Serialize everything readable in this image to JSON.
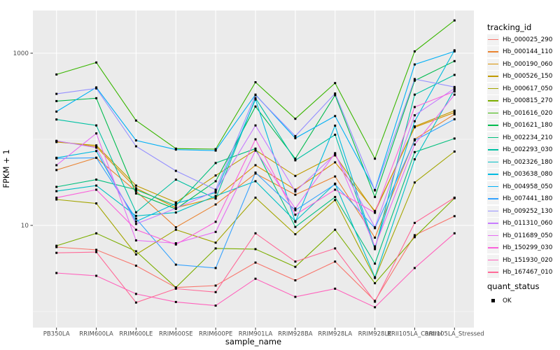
{
  "figure": {
    "x_axis_title": "sample_name",
    "y_axis_title": "FPKM + 1",
    "legend_tracking_title": "tracking_id",
    "legend_quant_title": "quant_status",
    "legend_quant_ok_label": "OK"
  },
  "style_colors": {
    "panel_background": "#EBEBEB",
    "gridline": "#FFFFFF",
    "tick_mark": "#333333",
    "tick_label": "#4D4D4D",
    "point": "#000000",
    "legend_key_background": "#F2F2F2"
  },
  "chart_data": {
    "type": "line",
    "title": "",
    "xlabel": "sample_name",
    "ylabel": "FPKM + 1",
    "y_scale": "log10",
    "ylim": [
      0.68,
      3100
    ],
    "y_major_ticks": [
      10,
      1000
    ],
    "y_minor_gridlines": [
      1,
      100
    ],
    "grid": true,
    "legend_position": "right",
    "point_legend": {
      "title": "quant_status",
      "items": [
        "OK"
      ]
    },
    "categories": [
      "PB350LA",
      "RRIM600LA",
      "RRIM600LE",
      "RRIM600SE",
      "RRIM600PE",
      "RRIM901LA",
      "RRIM928BA",
      "RRIM928LA",
      "RRIM928LE",
      "RRII105LA_Control",
      "RRII105LA_Stressed"
    ],
    "series": [
      {
        "name": "Hb_000025_290",
        "color": "#F8766D",
        "values": [
          5.6,
          5.2,
          3.4,
          1.9,
          2.0,
          3.7,
          2.3,
          3.8,
          1.33,
          7.7,
          12.8
        ]
      },
      {
        "name": "Hb_000144_110",
        "color": "#EA8331",
        "values": [
          44,
          61,
          25,
          9.5,
          17.5,
          40,
          22.7,
          37,
          7.2,
          100,
          195
        ]
      },
      {
        "name": "Hb_000190_060",
        "color": "#D89000",
        "values": [
          95,
          82,
          27,
          16,
          21,
          50,
          26,
          54,
          14.7,
          138,
          205
        ]
      },
      {
        "name": "Hb_000526_150",
        "color": "#C09B00",
        "values": [
          93,
          85,
          29,
          18.5,
          38,
          75,
          37.6,
          65,
          14.3,
          141,
          215
        ]
      },
      {
        "name": "Hb_000617_050",
        "color": "#A3A500",
        "values": [
          20,
          18,
          4.6,
          8.9,
          6.3,
          21,
          7.9,
          19.7,
          2.45,
          31.5,
          72
        ]
      },
      {
        "name": "Hb_000815_270",
        "color": "#7CAE00",
        "values": [
          5.8,
          8.1,
          5.0,
          1.9,
          5.4,
          5.3,
          3.3,
          8.9,
          2.13,
          7.3,
          20.7
        ]
      },
      {
        "name": "Hb_001616_020",
        "color": "#39B600",
        "values": [
          566,
          780,
          165,
          78,
          77,
          460,
          173,
          450,
          59.5,
          1050,
          2400
        ]
      },
      {
        "name": "Hb_001621_180",
        "color": "#00BB4E",
        "values": [
          278,
          300,
          23.5,
          15.5,
          32.6,
          240,
          59.5,
          325,
          21.4,
          480,
          810
        ]
      },
      {
        "name": "Hb_002234_210",
        "color": "#00BF7D",
        "values": [
          28,
          34,
          26,
          17,
          53,
          78,
          9.6,
          21.4,
          3.6,
          71,
          102
        ]
      },
      {
        "name": "Hb_002293_030",
        "color": "#00C1A3",
        "values": [
          170,
          145,
          14.2,
          34,
          20.5,
          300,
          57,
          113,
          5.3,
          330,
          560
        ]
      },
      {
        "name": "Hb_002326_180",
        "color": "#00BFC4",
        "values": [
          25,
          29,
          12.9,
          14.1,
          22,
          32.6,
          11.2,
          30.5,
          2.5,
          58.5,
          380
        ]
      },
      {
        "name": "Hb_003638_080",
        "color": "#00BAE0",
        "values": [
          61,
          73,
          11.1,
          18,
          24,
          290,
          11.0,
          144,
          5.5,
          162,
          1080
        ]
      },
      {
        "name": "Hb_004958_050",
        "color": "#00B0F6",
        "values": [
          210,
          400,
          97,
          76,
          74,
          330,
          103,
          186,
          25.8,
          740,
          1050
        ]
      },
      {
        "name": "Hb_007441_180",
        "color": "#35A2FF",
        "values": [
          60,
          61,
          12,
          3.5,
          3.2,
          41,
          15,
          30,
          9.3,
          97,
          171
        ]
      },
      {
        "name": "Hb_009252_130",
        "color": "#9590FF",
        "values": [
          337,
          390,
          83,
          43,
          26,
          325,
          109,
          340,
          25.5,
          500,
          405
        ]
      },
      {
        "name": "Hb_011310_060",
        "color": "#C77CFF",
        "values": [
          96,
          80,
          10.4,
          15.8,
          25,
          145,
          24.8,
          67,
          9.5,
          190,
          390
        ]
      },
      {
        "name": "Hb_011689_050",
        "color": "#E76BF3",
        "values": [
          50,
          117,
          6.7,
          6.2,
          8.4,
          74,
          15.7,
          69,
          5.7,
          87,
          330
        ]
      },
      {
        "name": "Hb_150299_030",
        "color": "#FA62DB",
        "values": [
          21,
          26,
          8.9,
          6.0,
          11,
          100,
          13.3,
          26,
          14.0,
          237,
          360
        ]
      },
      {
        "name": "Hb_151930_020",
        "color": "#FF62BC",
        "values": [
          2.8,
          2.6,
          1.6,
          1.29,
          1.17,
          2.4,
          1.48,
          1.84,
          1.12,
          3.2,
          8.1
        ]
      },
      {
        "name": "Hb_167467_010",
        "color": "#FF6A98",
        "values": [
          4.8,
          4.9,
          1.27,
          1.84,
          1.68,
          8.1,
          3.8,
          5.4,
          1.3,
          10.7,
          21
        ]
      }
    ]
  }
}
